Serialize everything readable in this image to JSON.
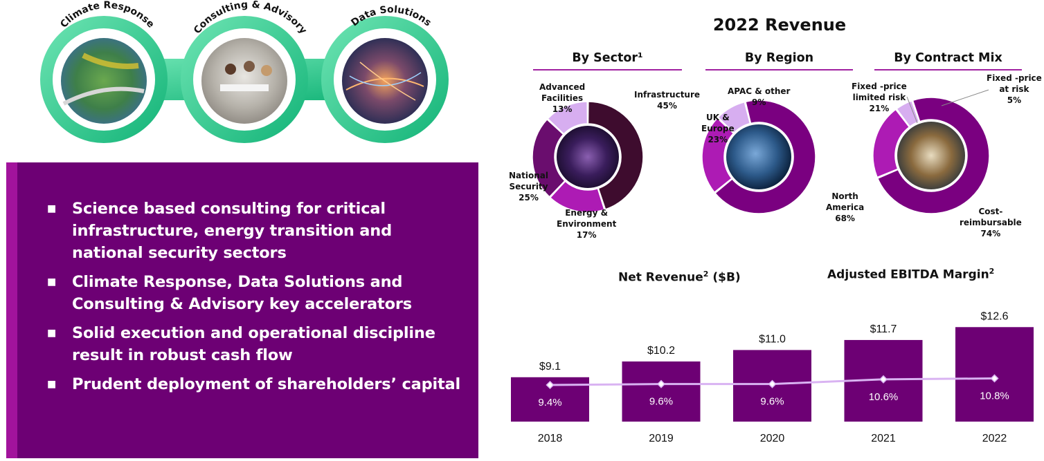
{
  "accelerators": [
    {
      "label": "Climate Response",
      "icon": "climate-landscape-photo"
    },
    {
      "label": "Consulting & Advisory",
      "icon": "consulting-meeting-photo"
    },
    {
      "label": "Data Solutions",
      "icon": "data-network-photo"
    }
  ],
  "highlights": [
    "Science based consulting for critical infrastructure, energy transition and national security sectors",
    "Climate Response, Data Solutions and Consulting & Advisory key accelerators",
    "Solid execution and operational discipline result in robust cash flow",
    "Prudent deployment of shareholders’ capital"
  ],
  "revenue": {
    "title": "2022 Revenue",
    "by_sector_title": "By Sector¹",
    "by_region_title": "By Region",
    "by_contract_title": "By Contract Mix"
  },
  "colors": {
    "panel": "#6d0074",
    "panel_stripe": "#a2139c",
    "bar": "#6d0074",
    "line": "#d9b3f2",
    "ring_green": "#1fc485",
    "rule": "#a020a0"
  },
  "chart_data": [
    {
      "type": "pie",
      "title": "By Sector¹",
      "slices": [
        {
          "label": "Infrastructure",
          "value": 45,
          "display": "Infrastructure\n45%",
          "color": "#3e0c2e"
        },
        {
          "label": "Energy & Environment",
          "value": 17,
          "display": "Energy &\nEnvironment\n17%",
          "color": "#ad1bb4"
        },
        {
          "label": "National Security",
          "value": 25,
          "display": "National\nSecurity\n25%",
          "color": "#6a0d6e"
        },
        {
          "label": "Advanced Facilities",
          "value": 13,
          "display": "Advanced\nFacilities\n13%",
          "color": "#d7aef0"
        }
      ]
    },
    {
      "type": "pie",
      "title": "By Region",
      "slices": [
        {
          "label": "North America",
          "value": 68,
          "display": "North\nAmerica\n68%",
          "color": "#7a0080"
        },
        {
          "label": "UK & Europe",
          "value": 23,
          "display": "UK &\nEurope\n23%",
          "color": "#ad1bb4"
        },
        {
          "label": "APAC & other",
          "value": 9,
          "display": "APAC & other\n9%",
          "color": "#d7aef0"
        }
      ]
    },
    {
      "type": "pie",
      "title": "By Contract Mix",
      "slices": [
        {
          "label": "Cost-reimbursable",
          "value": 74,
          "display": "Cost-\nreimbursable\n74%",
          "color": "#7a0080"
        },
        {
          "label": "Fixed -price limited risk",
          "value": 21,
          "display": "Fixed -price\nlimited risk\n21%",
          "color": "#ad1bb4"
        },
        {
          "label": "Fixed -price at risk",
          "value": 5,
          "display": "Fixed -price\nat risk\n5%",
          "color": "#d7aef0"
        }
      ]
    },
    {
      "type": "bar",
      "title": "Net Revenue² ($B)",
      "categories": [
        "2018",
        "2019",
        "2020",
        "2021",
        "2022"
      ],
      "values": [
        9.1,
        10.2,
        11.0,
        11.7,
        12.6
      ],
      "value_labels": [
        "$9.1",
        "$10.2",
        "$11.0",
        "$11.7",
        "$12.6"
      ],
      "ylim": [
        6,
        13
      ]
    },
    {
      "type": "line",
      "title": "Adjusted EBITDA Margin²",
      "categories": [
        "2018",
        "2019",
        "2020",
        "2021",
        "2022"
      ],
      "values": [
        9.4,
        9.6,
        9.6,
        10.6,
        10.8
      ],
      "value_labels": [
        "9.4%",
        "9.6%",
        "9.6%",
        "10.6%",
        "10.8%"
      ]
    }
  ],
  "bar_chart": {
    "title_main": "Net Revenue",
    "title_sup": "2",
    "title_unit": " ($B)",
    "line_title_main": "Adjusted EBITDA Margin",
    "line_title_sup": "2"
  }
}
